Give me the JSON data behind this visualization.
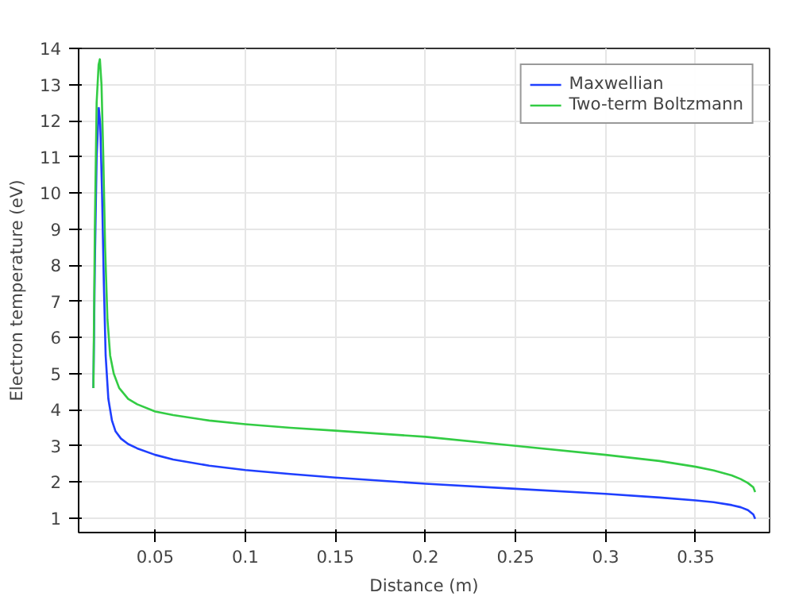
{
  "chart_data": {
    "type": "line",
    "xlabel": "Distance (m)",
    "ylabel": "Electron temperature (eV)",
    "xlim": [
      0.0075,
      0.391
    ],
    "ylim": [
      0.6,
      14
    ],
    "xticks": [
      0.05,
      0.1,
      0.15,
      0.2,
      0.25,
      0.3,
      0.35
    ],
    "yticks": [
      1,
      2,
      3,
      4,
      5,
      6,
      7,
      8,
      9,
      10,
      11,
      12,
      13,
      14
    ],
    "grid": true,
    "legend": "top right",
    "marker": "none",
    "line_style": "solid",
    "series": [
      {
        "name": "Maxwellian",
        "color": "#1f3fff",
        "x": [
          0.0157,
          0.0165,
          0.0175,
          0.0187,
          0.0195,
          0.0205,
          0.0215,
          0.0225,
          0.024,
          0.026,
          0.028,
          0.031,
          0.035,
          0.04,
          0.05,
          0.06,
          0.08,
          0.1,
          0.125,
          0.15,
          0.2,
          0.25,
          0.3,
          0.33,
          0.35,
          0.36,
          0.37,
          0.375,
          0.379,
          0.382,
          0.383
        ],
        "values": [
          4.6,
          8.0,
          11.0,
          12.35,
          11.9,
          10.0,
          7.5,
          5.5,
          4.3,
          3.7,
          3.4,
          3.2,
          3.05,
          2.93,
          2.75,
          2.62,
          2.45,
          2.33,
          2.22,
          2.12,
          1.95,
          1.81,
          1.67,
          1.57,
          1.49,
          1.44,
          1.36,
          1.3,
          1.22,
          1.1,
          0.98
        ]
      },
      {
        "name": "Two-term Boltzmann",
        "color": "#33cc44",
        "x": [
          0.0157,
          0.0165,
          0.0175,
          0.0186,
          0.0193,
          0.0202,
          0.0212,
          0.0222,
          0.0235,
          0.025,
          0.027,
          0.03,
          0.035,
          0.04,
          0.05,
          0.06,
          0.08,
          0.1,
          0.125,
          0.15,
          0.2,
          0.25,
          0.3,
          0.33,
          0.35,
          0.36,
          0.37,
          0.375,
          0.379,
          0.382,
          0.383
        ],
        "values": [
          4.6,
          9.0,
          12.5,
          13.55,
          13.7,
          13.0,
          11.0,
          8.5,
          6.5,
          5.5,
          5.0,
          4.6,
          4.3,
          4.15,
          3.95,
          3.85,
          3.7,
          3.6,
          3.5,
          3.42,
          3.25,
          3.0,
          2.75,
          2.58,
          2.42,
          2.32,
          2.18,
          2.08,
          1.97,
          1.85,
          1.72
        ]
      }
    ]
  }
}
